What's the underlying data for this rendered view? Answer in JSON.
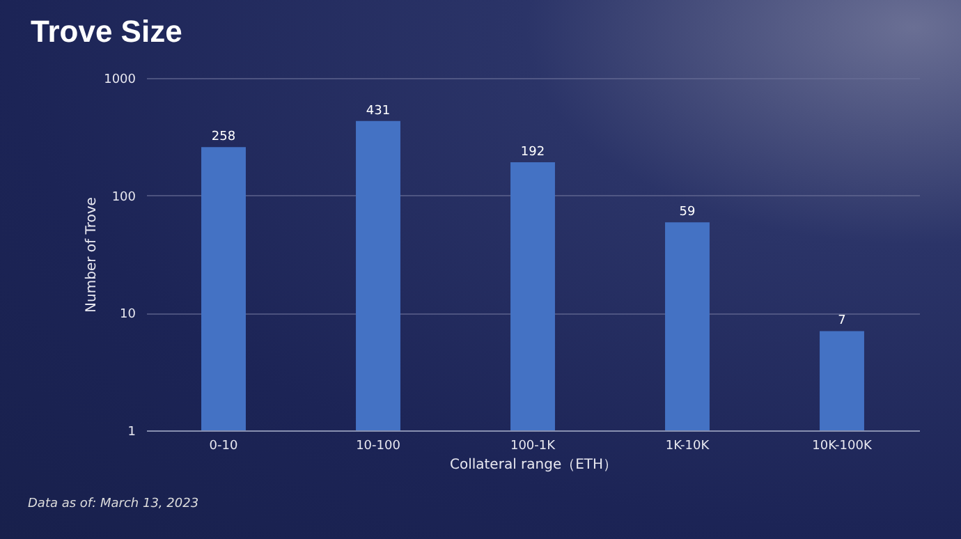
{
  "chart_data": {
    "type": "bar",
    "title": "Trove Size",
    "xlabel": "Collateral range（ETH）",
    "ylabel": "Number of Trove",
    "categories": [
      "0-10",
      "10-100",
      "100-1K",
      "1K-10K",
      "10K-100K"
    ],
    "values": [
      258,
      431,
      192,
      59,
      7
    ],
    "color": "#4472c4",
    "log": "y",
    "ylim": [
      1,
      1000
    ],
    "yticks": [
      1,
      10,
      100,
      1000
    ],
    "grid": "y",
    "data_labels": true,
    "annotations": [
      "Data as of: March 13, 2023"
    ]
  }
}
